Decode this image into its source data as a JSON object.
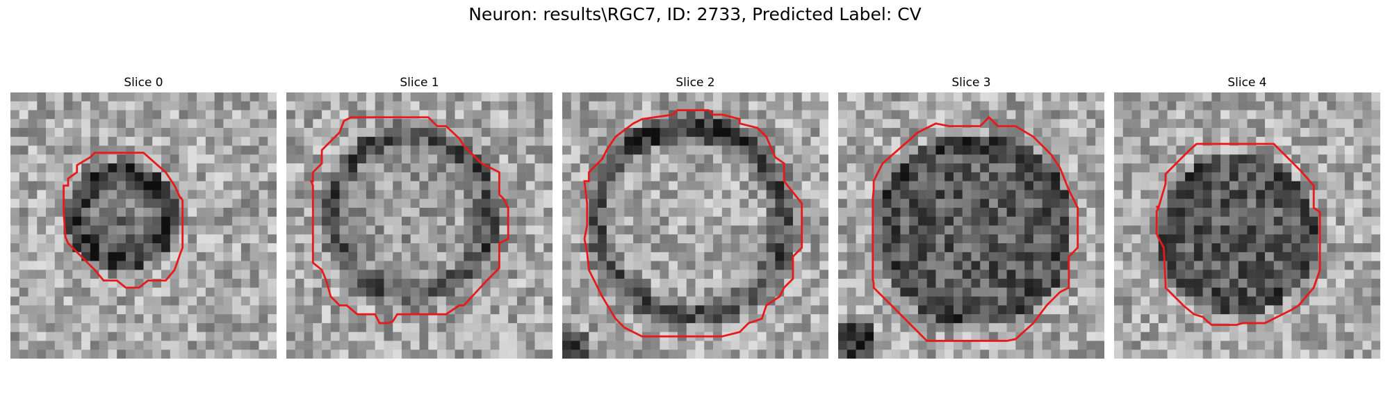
{
  "figure": {
    "title": "Neuron: results\\RGC7, ID: 2733, Predicted Label: CV",
    "contour_color": "#e8191b"
  },
  "panels": [
    {
      "title": "Slice 0"
    },
    {
      "title": "Slice 1"
    },
    {
      "title": "Slice 2"
    },
    {
      "title": "Slice 3"
    },
    {
      "title": "Slice 4"
    }
  ]
}
